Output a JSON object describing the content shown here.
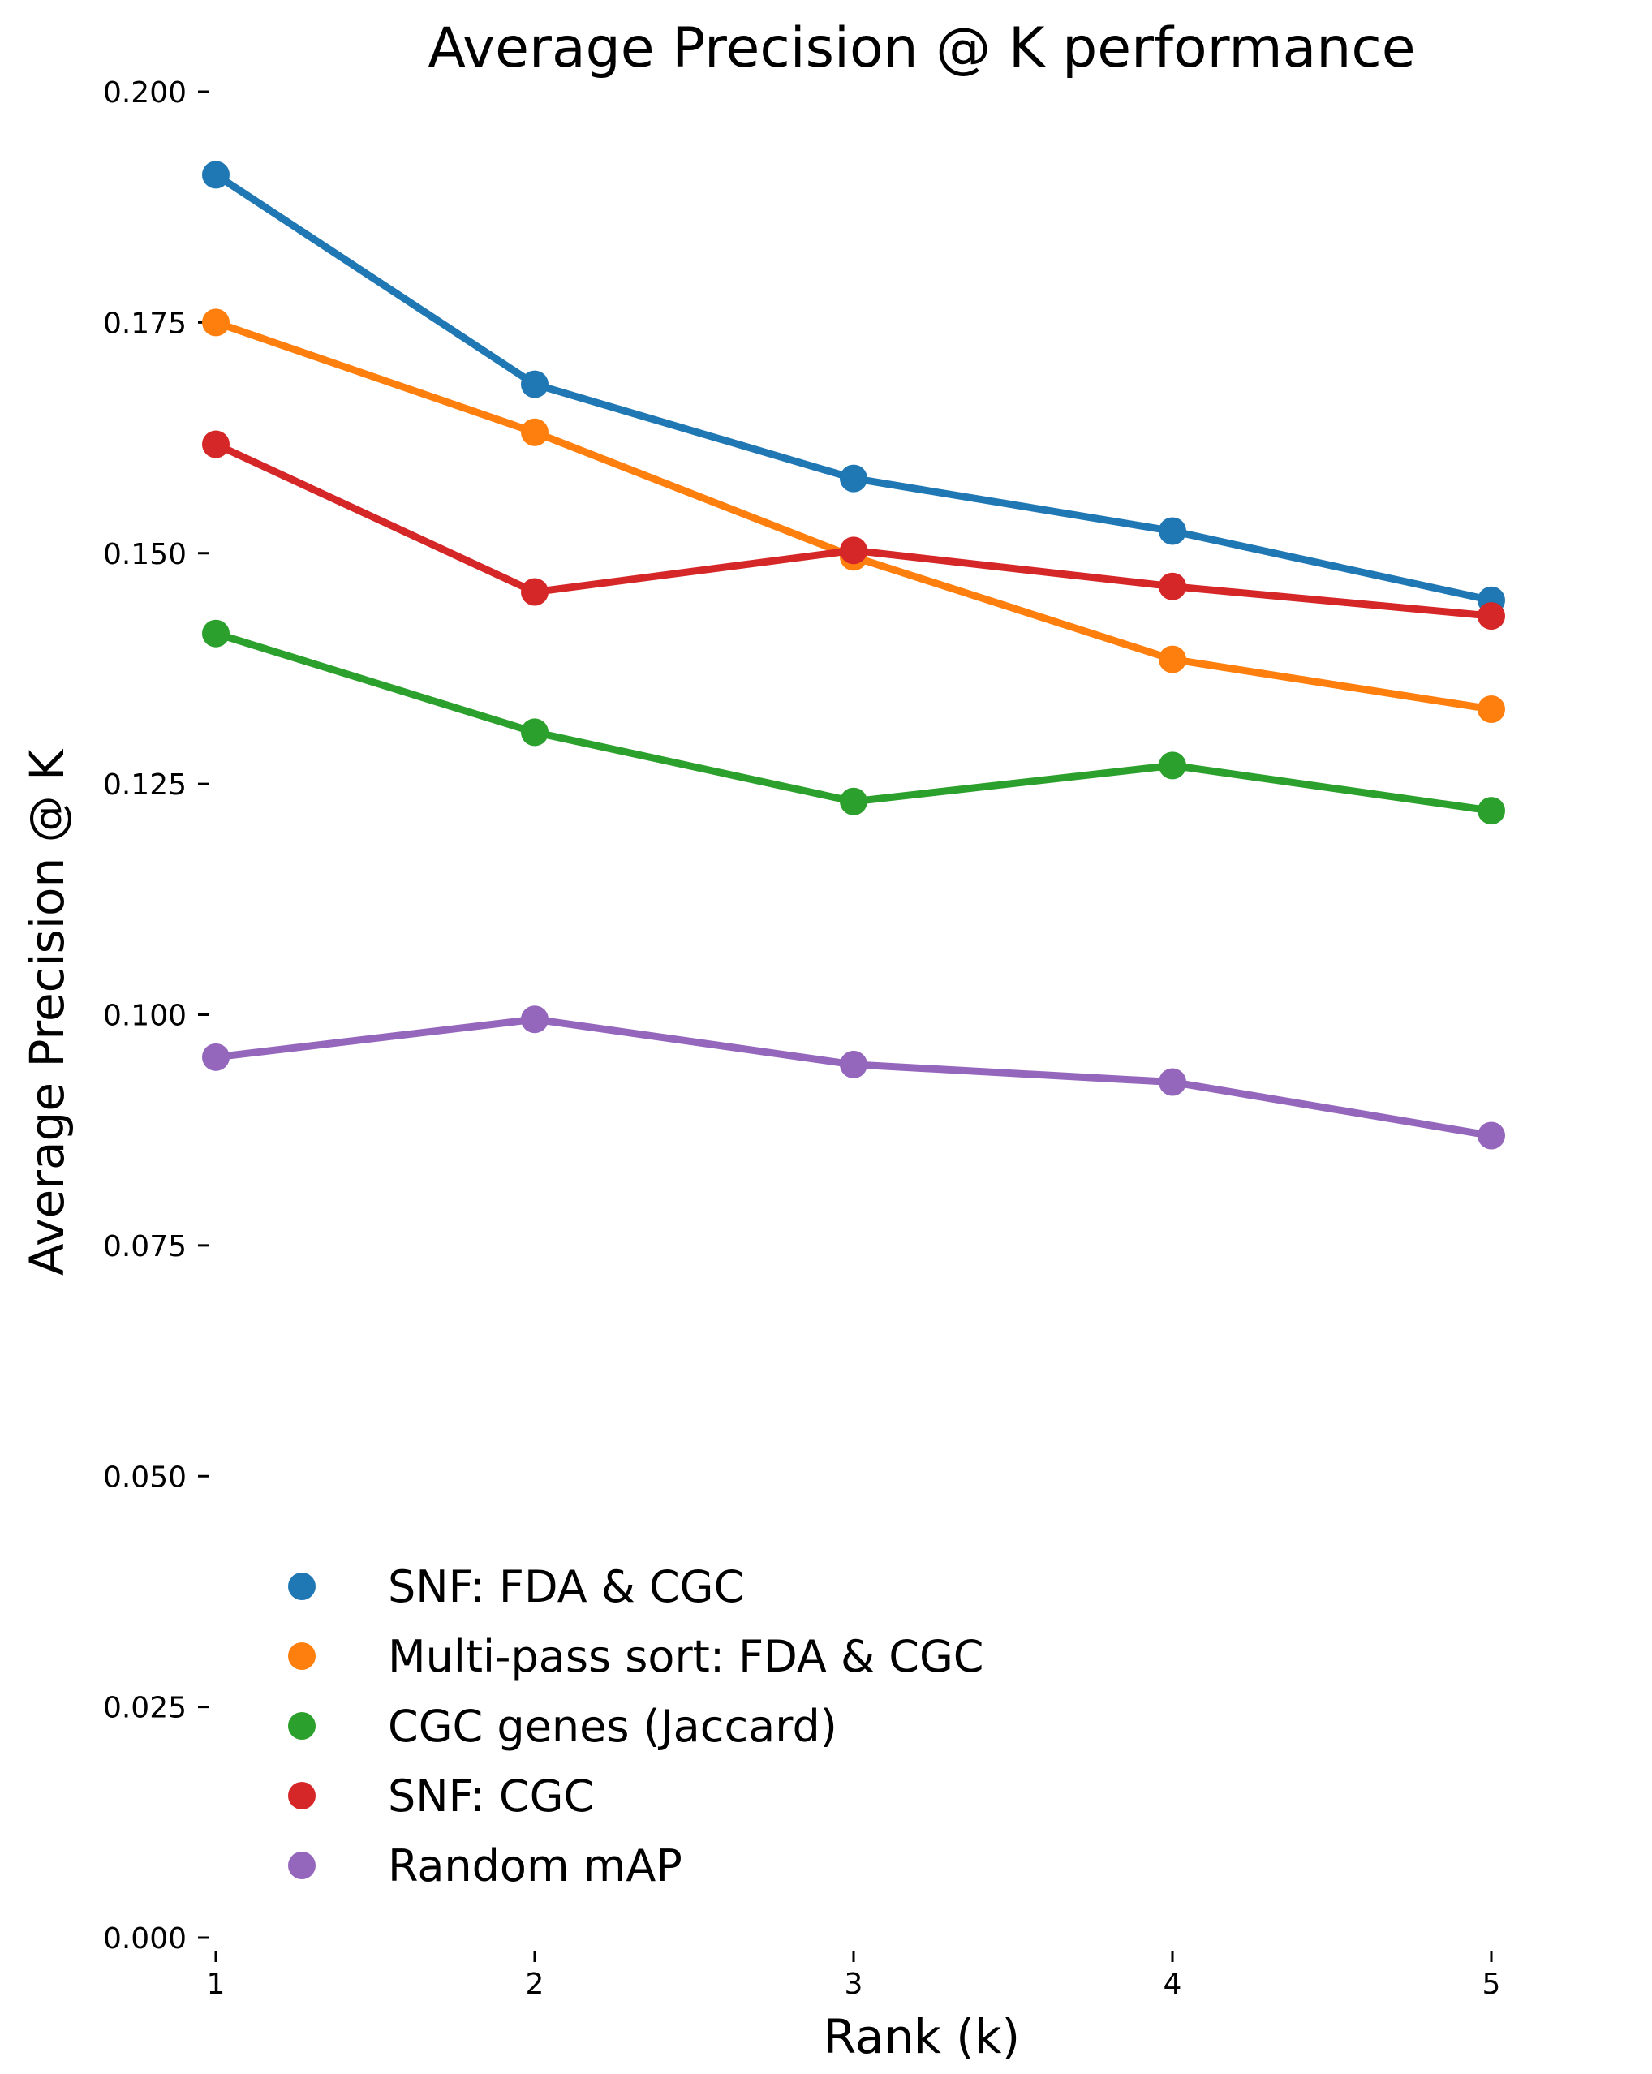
{
  "chart_data": {
    "type": "line",
    "title": "Average Precision @ K performance",
    "xlabel": "Rank (k)",
    "ylabel": "Average Precision @ K",
    "x": [
      1,
      2,
      3,
      4,
      5
    ],
    "xlim": [
      0.5,
      5.5
    ],
    "ylim": [
      0.0,
      0.2
    ],
    "yticks": [
      "0.000",
      "0.025",
      "0.050",
      "0.075",
      "0.100",
      "0.125",
      "0.150",
      "0.175",
      "0.200"
    ],
    "xticks": [
      "1",
      "2",
      "3",
      "4",
      "5"
    ],
    "grid": false,
    "legend_position": "lower-left",
    "series": [
      {
        "name": "SNF: FDA & CGC",
        "color": "#1f77b4",
        "values": [
          0.191,
          0.1683,
          0.1581,
          0.1524,
          0.1449
        ]
      },
      {
        "name": "Multi-pass sort: FDA & CGC",
        "color": "#ff7f0e",
        "values": [
          0.175,
          0.1631,
          0.1496,
          0.1385,
          0.1331
        ]
      },
      {
        "name": "CGC genes (Jaccard)",
        "color": "#2ca02c",
        "values": [
          0.1413,
          0.1306,
          0.1231,
          0.127,
          0.1221
        ]
      },
      {
        "name": "SNF: CGC",
        "color": "#d62728",
        "values": [
          0.1618,
          0.1458,
          0.1503,
          0.1464,
          0.1432
        ]
      },
      {
        "name": "Random mAP",
        "color": "#9467bd",
        "values": [
          0.0954,
          0.0995,
          0.0946,
          0.0927,
          0.0869
        ]
      }
    ]
  }
}
